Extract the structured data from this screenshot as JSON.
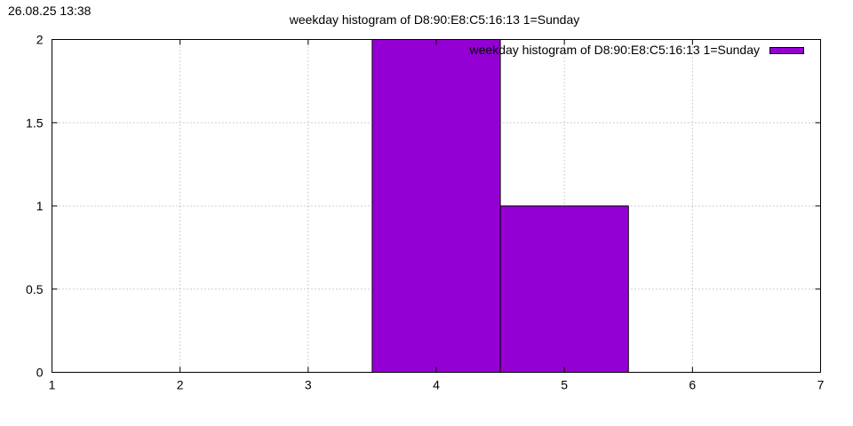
{
  "timestamp": "26.08.25 13:38",
  "chart_data": {
    "type": "bar",
    "title": "weekday histogram of D8:90:E8:C5:16:13 1=Sunday",
    "xlabel": "",
    "ylabel": "",
    "xlim": [
      1,
      7
    ],
    "ylim": [
      0,
      2
    ],
    "x_ticks": [
      1,
      2,
      3,
      4,
      5,
      6,
      7
    ],
    "y_ticks": [
      0,
      0.5,
      1,
      1.5,
      2
    ],
    "y_tick_labels": [
      "0",
      "0.5",
      "1",
      "1.5",
      "2"
    ],
    "grid": true,
    "legend_position": "top-right",
    "bar_width": 1,
    "color": "#9400d3",
    "series": [
      {
        "name": "weekday histogram of D8:90:E8:C5:16:13 1=Sunday",
        "x": [
          4,
          5
        ],
        "values": [
          2,
          1
        ]
      }
    ]
  }
}
